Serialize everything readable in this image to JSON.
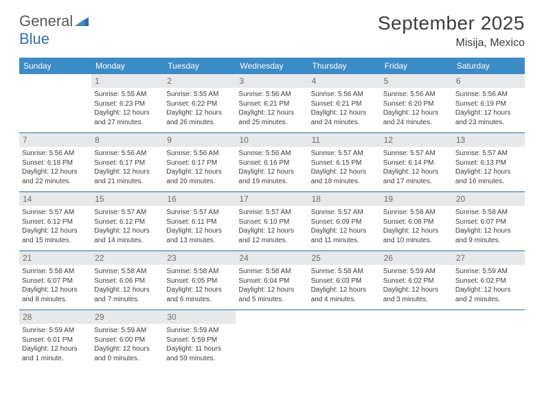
{
  "brand": {
    "part1": "General",
    "part2": "Blue"
  },
  "title": "September 2025",
  "location": "Misija, Mexico",
  "colors": {
    "header_bg": "#3b8bc7",
    "rule": "#2f6fa7",
    "daynum_bg": "#e7e8e9",
    "text": "#3a3c3e",
    "logo_gray": "#56585a",
    "logo_blue": "#2f6fa7"
  },
  "days_of_week": [
    "Sunday",
    "Monday",
    "Tuesday",
    "Wednesday",
    "Thursday",
    "Friday",
    "Saturday"
  ],
  "weeks": [
    [
      {
        "n": "",
        "empty": true
      },
      {
        "n": "1",
        "sr": "Sunrise: 5:55 AM",
        "ss": "Sunset: 6:23 PM",
        "dl1": "Daylight: 12 hours",
        "dl2": "and 27 minutes."
      },
      {
        "n": "2",
        "sr": "Sunrise: 5:55 AM",
        "ss": "Sunset: 6:22 PM",
        "dl1": "Daylight: 12 hours",
        "dl2": "and 26 minutes."
      },
      {
        "n": "3",
        "sr": "Sunrise: 5:56 AM",
        "ss": "Sunset: 6:21 PM",
        "dl1": "Daylight: 12 hours",
        "dl2": "and 25 minutes."
      },
      {
        "n": "4",
        "sr": "Sunrise: 5:56 AM",
        "ss": "Sunset: 6:21 PM",
        "dl1": "Daylight: 12 hours",
        "dl2": "and 24 minutes."
      },
      {
        "n": "5",
        "sr": "Sunrise: 5:56 AM",
        "ss": "Sunset: 6:20 PM",
        "dl1": "Daylight: 12 hours",
        "dl2": "and 24 minutes."
      },
      {
        "n": "6",
        "sr": "Sunrise: 5:56 AM",
        "ss": "Sunset: 6:19 PM",
        "dl1": "Daylight: 12 hours",
        "dl2": "and 23 minutes."
      }
    ],
    [
      {
        "n": "7",
        "sr": "Sunrise: 5:56 AM",
        "ss": "Sunset: 6:18 PM",
        "dl1": "Daylight: 12 hours",
        "dl2": "and 22 minutes."
      },
      {
        "n": "8",
        "sr": "Sunrise: 5:56 AM",
        "ss": "Sunset: 6:17 PM",
        "dl1": "Daylight: 12 hours",
        "dl2": "and 21 minutes."
      },
      {
        "n": "9",
        "sr": "Sunrise: 5:56 AM",
        "ss": "Sunset: 6:17 PM",
        "dl1": "Daylight: 12 hours",
        "dl2": "and 20 minutes."
      },
      {
        "n": "10",
        "sr": "Sunrise: 5:56 AM",
        "ss": "Sunset: 6:16 PM",
        "dl1": "Daylight: 12 hours",
        "dl2": "and 19 minutes."
      },
      {
        "n": "11",
        "sr": "Sunrise: 5:57 AM",
        "ss": "Sunset: 6:15 PM",
        "dl1": "Daylight: 12 hours",
        "dl2": "and 18 minutes."
      },
      {
        "n": "12",
        "sr": "Sunrise: 5:57 AM",
        "ss": "Sunset: 6:14 PM",
        "dl1": "Daylight: 12 hours",
        "dl2": "and 17 minutes."
      },
      {
        "n": "13",
        "sr": "Sunrise: 5:57 AM",
        "ss": "Sunset: 6:13 PM",
        "dl1": "Daylight: 12 hours",
        "dl2": "and 16 minutes."
      }
    ],
    [
      {
        "n": "14",
        "sr": "Sunrise: 5:57 AM",
        "ss": "Sunset: 6:12 PM",
        "dl1": "Daylight: 12 hours",
        "dl2": "and 15 minutes."
      },
      {
        "n": "15",
        "sr": "Sunrise: 5:57 AM",
        "ss": "Sunset: 6:12 PM",
        "dl1": "Daylight: 12 hours",
        "dl2": "and 14 minutes."
      },
      {
        "n": "16",
        "sr": "Sunrise: 5:57 AM",
        "ss": "Sunset: 6:11 PM",
        "dl1": "Daylight: 12 hours",
        "dl2": "and 13 minutes."
      },
      {
        "n": "17",
        "sr": "Sunrise: 5:57 AM",
        "ss": "Sunset: 6:10 PM",
        "dl1": "Daylight: 12 hours",
        "dl2": "and 12 minutes."
      },
      {
        "n": "18",
        "sr": "Sunrise: 5:57 AM",
        "ss": "Sunset: 6:09 PM",
        "dl1": "Daylight: 12 hours",
        "dl2": "and 11 minutes."
      },
      {
        "n": "19",
        "sr": "Sunrise: 5:58 AM",
        "ss": "Sunset: 6:08 PM",
        "dl1": "Daylight: 12 hours",
        "dl2": "and 10 minutes."
      },
      {
        "n": "20",
        "sr": "Sunrise: 5:58 AM",
        "ss": "Sunset: 6:07 PM",
        "dl1": "Daylight: 12 hours",
        "dl2": "and 9 minutes."
      }
    ],
    [
      {
        "n": "21",
        "sr": "Sunrise: 5:58 AM",
        "ss": "Sunset: 6:07 PM",
        "dl1": "Daylight: 12 hours",
        "dl2": "and 8 minutes."
      },
      {
        "n": "22",
        "sr": "Sunrise: 5:58 AM",
        "ss": "Sunset: 6:06 PM",
        "dl1": "Daylight: 12 hours",
        "dl2": "and 7 minutes."
      },
      {
        "n": "23",
        "sr": "Sunrise: 5:58 AM",
        "ss": "Sunset: 6:05 PM",
        "dl1": "Daylight: 12 hours",
        "dl2": "and 6 minutes."
      },
      {
        "n": "24",
        "sr": "Sunrise: 5:58 AM",
        "ss": "Sunset: 6:04 PM",
        "dl1": "Daylight: 12 hours",
        "dl2": "and 5 minutes."
      },
      {
        "n": "25",
        "sr": "Sunrise: 5:58 AM",
        "ss": "Sunset: 6:03 PM",
        "dl1": "Daylight: 12 hours",
        "dl2": "and 4 minutes."
      },
      {
        "n": "26",
        "sr": "Sunrise: 5:59 AM",
        "ss": "Sunset: 6:02 PM",
        "dl1": "Daylight: 12 hours",
        "dl2": "and 3 minutes."
      },
      {
        "n": "27",
        "sr": "Sunrise: 5:59 AM",
        "ss": "Sunset: 6:02 PM",
        "dl1": "Daylight: 12 hours",
        "dl2": "and 2 minutes."
      }
    ],
    [
      {
        "n": "28",
        "sr": "Sunrise: 5:59 AM",
        "ss": "Sunset: 6:01 PM",
        "dl1": "Daylight: 12 hours",
        "dl2": "and 1 minute."
      },
      {
        "n": "29",
        "sr": "Sunrise: 5:59 AM",
        "ss": "Sunset: 6:00 PM",
        "dl1": "Daylight: 12 hours",
        "dl2": "and 0 minutes."
      },
      {
        "n": "30",
        "sr": "Sunrise: 5:59 AM",
        "ss": "Sunset: 5:59 PM",
        "dl1": "Daylight: 11 hours",
        "dl2": "and 59 minutes."
      },
      {
        "n": "",
        "empty": true
      },
      {
        "n": "",
        "empty": true
      },
      {
        "n": "",
        "empty": true
      },
      {
        "n": "",
        "empty": true
      }
    ]
  ]
}
